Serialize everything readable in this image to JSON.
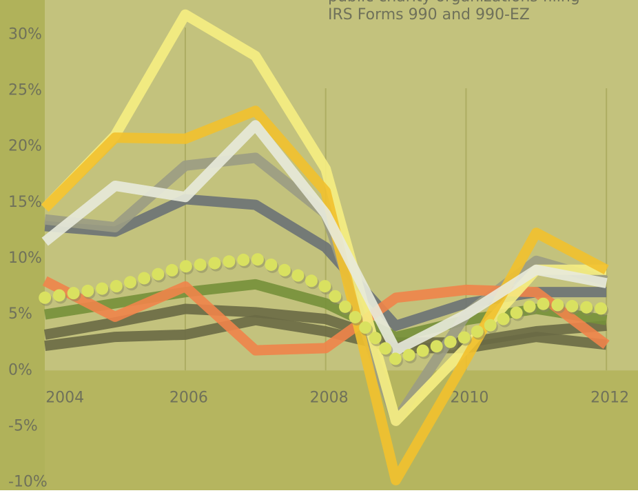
{
  "chart_data": {
    "type": "line",
    "annotation": [
      "public charity organizations filing",
      "IRS Forms 990 and 990-EZ"
    ],
    "x": [
      2004,
      2005,
      2006,
      2007,
      2008,
      2009,
      2010,
      2011,
      2012
    ],
    "xlim": [
      2003.36,
      2012.45
    ],
    "xticks": [
      2004,
      2006,
      2008,
      2010,
      2012
    ],
    "ylim": [
      -10.7,
      33.1
    ],
    "yticks": [
      {
        "value": -10,
        "label": "-10%"
      },
      {
        "value": -5,
        "label": "-5%"
      },
      {
        "value": 0,
        "label": "0%"
      },
      {
        "value": 5,
        "label": "5%"
      },
      {
        "value": 10,
        "label": "10%"
      },
      {
        "value": 15,
        "label": "15%"
      },
      {
        "value": 20,
        "label": "20%"
      },
      {
        "value": 25,
        "label": "25%"
      },
      {
        "value": 30,
        "label": "30%"
      }
    ],
    "grid": true,
    "series": [
      {
        "color": "#6a6a45",
        "values": [
          2.2,
          3,
          3.2,
          4.5,
          3.5,
          2,
          2,
          3,
          2.3
        ]
      },
      {
        "color": "#6a6a45",
        "values": [
          3.2,
          4.3,
          5.5,
          5.2,
          4.6,
          2.5,
          2.5,
          3.5,
          4
        ]
      },
      {
        "color": "#76903a",
        "values": [
          5,
          6,
          7,
          7.7,
          6,
          3,
          4.5,
          5.5,
          4.5
        ]
      },
      {
        "color": "#6b7275",
        "values": [
          12.9,
          12.4,
          15.3,
          14.8,
          11,
          4,
          6,
          7,
          7
        ]
      },
      {
        "color": "#9b9c84",
        "values": [
          13.5,
          12.8,
          18.3,
          19,
          14,
          -4.5,
          5,
          9.8,
          8
        ]
      },
      {
        "color": "#f0844a",
        "values": [
          8,
          4.8,
          7.5,
          1.8,
          2,
          6.5,
          7.2,
          7,
          2.3
        ]
      },
      {
        "color": "#f6ee82",
        "values": [
          14.5,
          21,
          31.8,
          28.1,
          18,
          -4.5,
          2,
          9,
          9
        ]
      },
      {
        "color": "#f2c12e",
        "values": [
          14.5,
          20.8,
          20.7,
          23.2,
          16,
          -9.8,
          1,
          12.3,
          9
        ]
      },
      {
        "color": "#e8eadb",
        "values": [
          11.5,
          16.5,
          15.5,
          21.9,
          14,
          1.8,
          5,
          9,
          7.8
        ]
      },
      {
        "color": "#d9e160",
        "dotted": true,
        "values": [
          6.5,
          7.5,
          9.3,
          10,
          7.5,
          1,
          3,
          6,
          5.5
        ]
      }
    ]
  }
}
